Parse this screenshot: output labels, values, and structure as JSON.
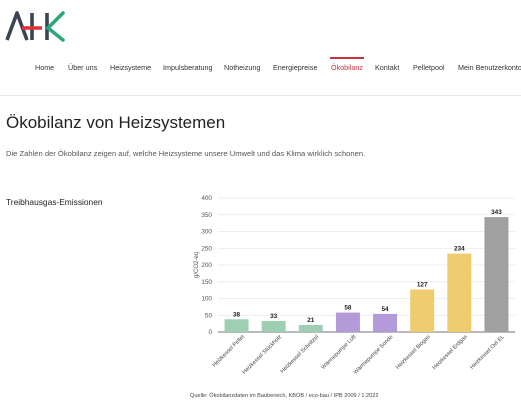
{
  "brand": {
    "logo_text": "AHK",
    "colors": {
      "logo_dark": "#3a4550",
      "logo_accent": "#e1313b",
      "logo_green": "#2ea67a",
      "nav_active": "#c4333b"
    }
  },
  "nav": {
    "items": [
      {
        "label": "Home",
        "active": false
      },
      {
        "label": "Über uns",
        "active": false
      },
      {
        "label": "Heizsysteme",
        "active": false
      },
      {
        "label": "Impulsberatung",
        "active": false
      },
      {
        "label": "Notheizung",
        "active": false
      },
      {
        "label": "Energiepreise",
        "active": false
      },
      {
        "label": "Ökobilanz",
        "active": true
      },
      {
        "label": "Kontakt",
        "active": false
      },
      {
        "label": "Pelletpool",
        "active": false
      },
      {
        "label": "Mein Benutzerkonto",
        "active": false
      }
    ]
  },
  "page": {
    "title": "Ökobilanz von Heizsystemen",
    "intro": "Die Zahlen der Ökobilanz zeigen auf, welche Heizsysteme unsere Umwelt und das Klima wirklich schonen.",
    "section_title": "Treibhausgas-Emissionen",
    "source_caption": "Quelle: Ökobilanzdaten im Baubereich, KBOB / eco-bau / IPB 2009 / 1:2022"
  },
  "chart_data": {
    "type": "bar",
    "title": "",
    "xlabel": "",
    "ylabel": "g/CO2-eq",
    "ylim": [
      0,
      400
    ],
    "yticks": [
      0,
      50,
      100,
      150,
      200,
      250,
      300,
      350,
      400
    ],
    "grid": true,
    "categories": [
      "Heizkessel Pellet",
      "Heizkessel Stückholz",
      "Heizkessel Schnitzel",
      "Wärmepumpe Luft",
      "Wärmepumpe Sonde",
      "Heizkessel Biogas",
      "Heizkessel Erdgas",
      "Heizkessel Oel EL"
    ],
    "values": [
      38,
      33,
      21,
      58,
      54,
      127,
      234,
      343
    ],
    "colors": [
      "#9fcfb2",
      "#9fcfb2",
      "#9fcfb2",
      "#b39ad8",
      "#b39ad8",
      "#f0cc70",
      "#f0cc70",
      "#a0a0a0"
    ]
  }
}
